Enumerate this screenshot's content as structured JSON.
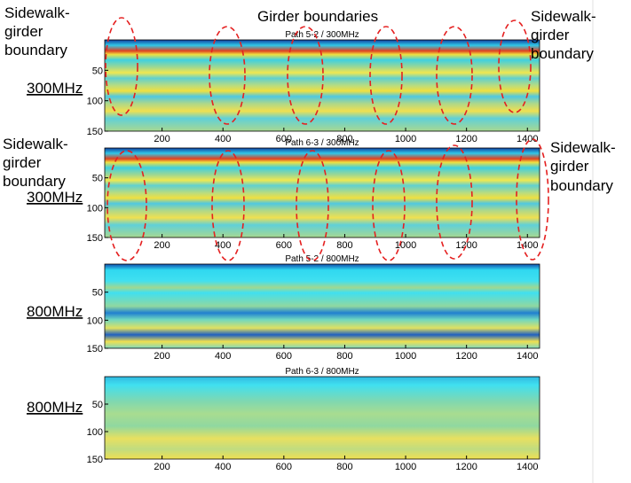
{
  "annotations": {
    "girder": "Girder boundaries",
    "top_left": [
      "Sidewalk-",
      "girder",
      "boundary"
    ],
    "top_right": [
      "Sidewalk-",
      "girder",
      "boundary"
    ],
    "mid_left": [
      "Sidewalk-",
      "girder",
      "boundary"
    ],
    "mid_right": [
      "Sidewalk-",
      "girder",
      "boundary"
    ]
  },
  "panels": [
    {
      "title": "Path 5-2 / 300MHz",
      "band_label": "300MHz",
      "xlim": [
        0,
        1440
      ],
      "ylim": [
        0,
        150
      ],
      "xticks": [
        200,
        400,
        600,
        800,
        1000,
        1200,
        1400
      ],
      "yticks": [
        50,
        100,
        150
      ]
    },
    {
      "title": "Path 6-3 / 300MHz",
      "band_label": "300MHz",
      "xlim": [
        0,
        1440
      ],
      "ylim": [
        0,
        150
      ],
      "xticks": [
        200,
        400,
        600,
        800,
        1000,
        1200,
        1400
      ],
      "yticks": [
        50,
        100,
        150
      ]
    },
    {
      "title": "Path 5-2 / 800MHz",
      "band_label": "800MHz",
      "xlim": [
        0,
        1440
      ],
      "ylim": [
        0,
        150
      ],
      "xticks": [
        200,
        400,
        600,
        800,
        1000,
        1200,
        1400
      ],
      "yticks": [
        50,
        100,
        150
      ]
    },
    {
      "title": "Path 6-3 / 800MHz",
      "band_label": "800MHz",
      "xlim": [
        0,
        1440
      ],
      "ylim": [
        0,
        150
      ],
      "xticks": [
        200,
        400,
        600,
        800,
        1000,
        1200,
        1400
      ],
      "yticks": [
        50,
        100,
        150
      ]
    }
  ]
}
